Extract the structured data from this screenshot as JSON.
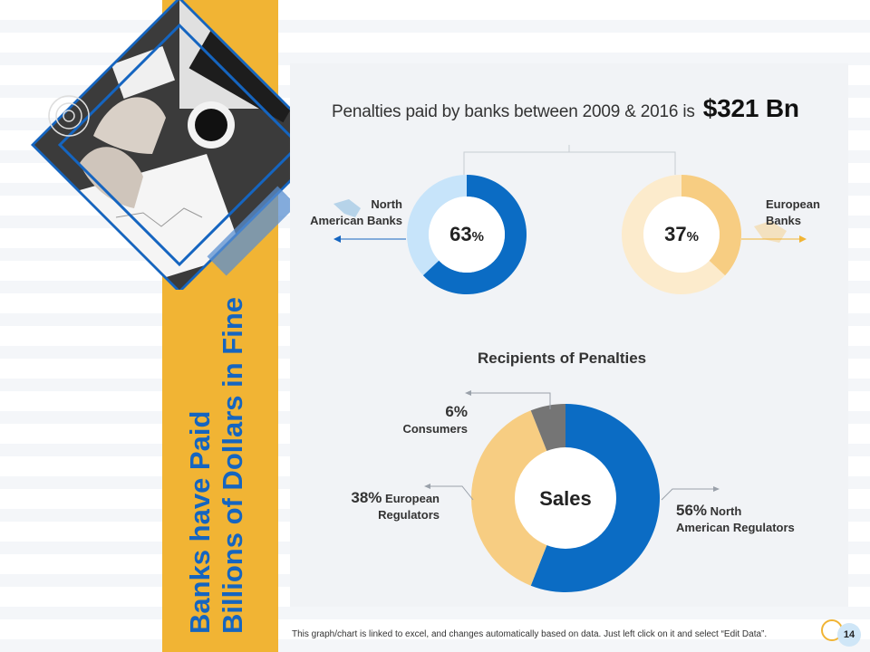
{
  "slide": {
    "title_line1": "Banks have Paid",
    "title_line2": "Billions of Dollars in Fine",
    "page_number": "14",
    "footer_note": "This graph/chart is linked to excel, and changes automatically  based on data. Just left click on it and select “Edit Data”."
  },
  "headline": {
    "text": "Penalties  paid by banks between 2009 & 2016 is",
    "amount": "$321 Bn"
  },
  "donuts": [
    {
      "label_line1": "North",
      "label_line2": "American Banks",
      "value": 63,
      "display": "63",
      "unit": "%",
      "color": "#0b6cc4",
      "track": "#c7e4fa"
    },
    {
      "label_line1": "European",
      "label_line2": "Banks",
      "value": 37,
      "display": "37",
      "unit": "%",
      "color": "#f7cd82",
      "track": "#fcebcc"
    }
  ],
  "pie_labels": {
    "consumers_pct": "6%",
    "consumers_name": "Consumers",
    "eu_pct": "38%",
    "eu_name1": "European",
    "eu_name2": "Regulators",
    "na_pct": "56%",
    "na_name1": "North",
    "na_name2": "American Regulators"
  },
  "chart_data": [
    {
      "type": "pie",
      "title": "",
      "categories": [
        "North American Banks",
        "European Banks"
      ],
      "values": [
        63,
        37
      ]
    },
    {
      "type": "pie",
      "title": "Recipients of Penalties",
      "center_label": "Sales",
      "categories": [
        "North American Regulators",
        "European Regulators",
        "Consumers"
      ],
      "values": [
        56,
        38,
        6
      ],
      "colors": [
        "#0b6cc4",
        "#f7cd82",
        "#757575"
      ]
    }
  ]
}
